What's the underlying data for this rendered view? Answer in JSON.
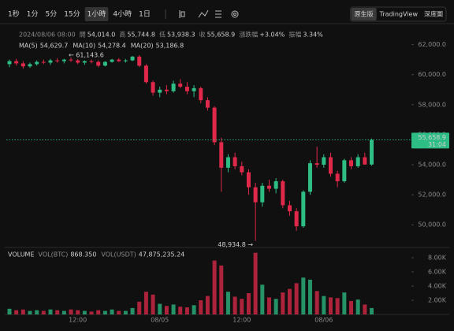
{
  "toolbar": {
    "intervals": [
      "1秒",
      "1分",
      "5分",
      "15分",
      "1小時",
      "4小時",
      "1日"
    ],
    "active": "1小時",
    "views": [
      "原生版",
      "TradingView",
      "深度圖"
    ],
    "active_view": "原生版"
  },
  "info": {
    "time": "2024/08/06 08:00",
    "fields": [
      {
        "label": "開",
        "value": "54,014.0"
      },
      {
        "label": "高",
        "value": "55,744.8"
      },
      {
        "label": "低",
        "value": "53,938.3"
      },
      {
        "label": "收",
        "value": "55,658.9"
      },
      {
        "label": "漲跌幅",
        "value": "+3.04%"
      },
      {
        "label": "振幅",
        "value": "3.34%"
      }
    ]
  },
  "chart_data": [
    {
      "type": "candlestick",
      "categories": [
        null,
        null,
        null,
        null,
        null,
        null,
        null,
        null,
        null,
        null,
        "12:00",
        null,
        null,
        null,
        null,
        null,
        null,
        null,
        null,
        null,
        null,
        null,
        "08/05",
        null,
        null,
        null,
        null,
        null,
        null,
        null,
        null,
        null,
        null,
        null,
        "12:00",
        null,
        null,
        null,
        null,
        null,
        null,
        null,
        null,
        null,
        null,
        null,
        "08/06",
        null,
        null,
        null,
        null,
        null,
        null,
        null
      ],
      "open": [
        60700,
        60900,
        60750,
        60550,
        60700,
        60850,
        60800,
        60950,
        60900,
        61000,
        60950,
        60800,
        60900,
        60850,
        60600,
        60850,
        61000,
        60900,
        60950,
        61200,
        60600,
        59500,
        58800,
        59000,
        58900,
        59400,
        59200,
        58900,
        59100,
        58300,
        57800,
        55500,
        53800,
        54500,
        53900,
        53500,
        52500,
        51500,
        52600,
        52400,
        52900,
        51300,
        50900,
        49900,
        52200,
        54100,
        54000,
        54500,
        53400,
        52900,
        54300,
        53900,
        54500,
        54014
      ],
      "high": [
        61000,
        61050,
        60900,
        60800,
        60950,
        61000,
        61050,
        61100,
        61050,
        61143.6,
        61050,
        60950,
        61000,
        60950,
        60900,
        61050,
        61100,
        61050,
        61250,
        61300,
        60700,
        59600,
        59200,
        59300,
        59600,
        59700,
        59500,
        59300,
        59200,
        58500,
        57900,
        55800,
        54700,
        54800,
        54200,
        53700,
        52800,
        52800,
        53000,
        53100,
        53000,
        51600,
        51100,
        52300,
        54300,
        55200,
        54700,
        54800,
        53600,
        54400,
        54500,
        54700,
        54800,
        55744.8
      ],
      "low": [
        60500,
        60600,
        60400,
        60450,
        60600,
        60700,
        60650,
        60800,
        60750,
        60850,
        60700,
        60650,
        60750,
        60500,
        60550,
        60800,
        60850,
        60800,
        60900,
        60500,
        59400,
        58600,
        58500,
        58700,
        58800,
        59100,
        58700,
        58500,
        58100,
        57600,
        55300,
        52200,
        53500,
        53700,
        53300,
        52000,
        48934.8,
        51200,
        52200,
        52100,
        51100,
        50600,
        49600,
        49800,
        52000,
        53800,
        53800,
        53200,
        52500,
        52800,
        53700,
        53800,
        54000,
        53938.3
      ],
      "close": [
        60900,
        60750,
        60550,
        60700,
        60850,
        60800,
        60950,
        60900,
        61000,
        60950,
        60800,
        60900,
        60850,
        60600,
        60850,
        61000,
        60900,
        60950,
        61200,
        60600,
        59500,
        58800,
        59000,
        58900,
        59400,
        59200,
        58900,
        59100,
        58300,
        57800,
        55500,
        53800,
        54500,
        53900,
        53500,
        52500,
        51500,
        52600,
        52400,
        52900,
        51300,
        50900,
        49900,
        52200,
        54100,
        54000,
        54500,
        53400,
        52900,
        54300,
        53900,
        54500,
        54014,
        55658.9
      ],
      "up_color": "#2ebd85",
      "down_color": "#e0294a",
      "ylim": [
        48700,
        62400
      ],
      "yticks": [
        {
          "value": 62000,
          "label": "62,000.0"
        },
        {
          "value": 60000,
          "label": "60,000.0"
        },
        {
          "value": 58000,
          "label": "58,000.0"
        },
        {
          "value": 56000,
          "label": "56,000.0"
        },
        {
          "value": 54000,
          "label": "54,000.0"
        },
        {
          "value": 52000,
          "label": "52,000.0"
        },
        {
          "value": 50000,
          "label": "50,000.0"
        }
      ],
      "ma": [
        {
          "name": "MA(5)",
          "label": "54,629.7",
          "color": "#e8a33d"
        },
        {
          "name": "MA(10)",
          "label": "54,278.4",
          "color": "#d36ba6"
        },
        {
          "name": "MA(20)",
          "label": "53,186.8",
          "color": "#6fa8dc"
        }
      ],
      "last_price": {
        "value": 55658.9,
        "label": "55,658.9"
      },
      "countdown": "31:04",
      "annotations": [
        {
          "value": 61143.6,
          "label": "← 61,143.6"
        },
        {
          "value": 48934.8,
          "label": "48,934.8 →"
        }
      ]
    },
    {
      "type": "bar",
      "title": "VOLUME",
      "legend": [
        {
          "name": "VOL(BTC)",
          "label": "868.350"
        },
        {
          "name": "VOL(USDT)",
          "label": "47,875,235.24"
        }
      ],
      "values": [
        800,
        600,
        700,
        500,
        600,
        500,
        700,
        600,
        500,
        700,
        600,
        500,
        400,
        600,
        500,
        700,
        500,
        500,
        900,
        1800,
        3200,
        2800,
        1500,
        1200,
        1400,
        1100,
        1000,
        1300,
        2000,
        2600,
        7600,
        6900,
        3200,
        2500,
        2200,
        3000,
        8700,
        4200,
        2400,
        2200,
        3100,
        3600,
        4400,
        5200,
        4900,
        3300,
        2600,
        2400,
        2300,
        3100,
        1900,
        2100,
        1400,
        900
      ],
      "ylim": [
        0,
        9000
      ],
      "yticks": [
        {
          "value": 8000,
          "label": "8.00K"
        },
        {
          "value": 6000,
          "label": "6.00K"
        },
        {
          "value": 4000,
          "label": "4.00K"
        },
        {
          "value": 2000,
          "label": "2.00K"
        }
      ]
    }
  ]
}
